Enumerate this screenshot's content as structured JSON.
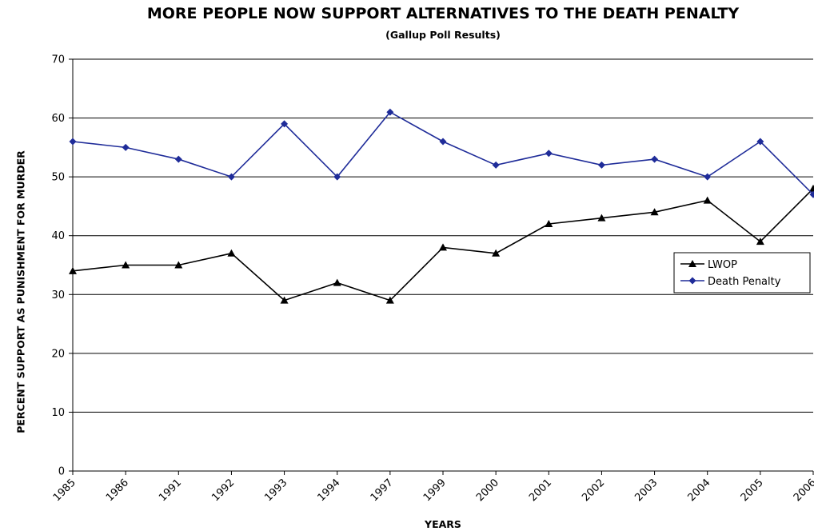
{
  "chart_data": {
    "type": "line",
    "title": "MORE PEOPLE NOW SUPPORT ALTERNATIVES TO THE DEATH PENALTY",
    "subtitle": "(Gallup Poll Results)",
    "xlabel": "YEARS",
    "ylabel": "PERCENT SUPPORT AS PUNISHMENT FOR MURDER",
    "categories": [
      "1985",
      "1986",
      "1991",
      "1992",
      "1993",
      "1994",
      "1997",
      "1999",
      "2000",
      "2001",
      "2002",
      "2003",
      "2004",
      "2005",
      "2006"
    ],
    "ylim": [
      0,
      70
    ],
    "yticks": [
      0,
      10,
      20,
      30,
      40,
      50,
      60,
      70
    ],
    "grid": true,
    "legend_position": "right",
    "series": [
      {
        "name": "LWOP",
        "color": "#000000",
        "marker": "triangle",
        "values": [
          34,
          35,
          35,
          37,
          29,
          32,
          29,
          38,
          37,
          42,
          43,
          44,
          46,
          39,
          48
        ]
      },
      {
        "name": "Death Penalty",
        "color": "#1f2c99",
        "marker": "diamond",
        "values": [
          56,
          55,
          53,
          50,
          59,
          50,
          61,
          56,
          52,
          54,
          52,
          53,
          50,
          56,
          47
        ]
      }
    ]
  }
}
